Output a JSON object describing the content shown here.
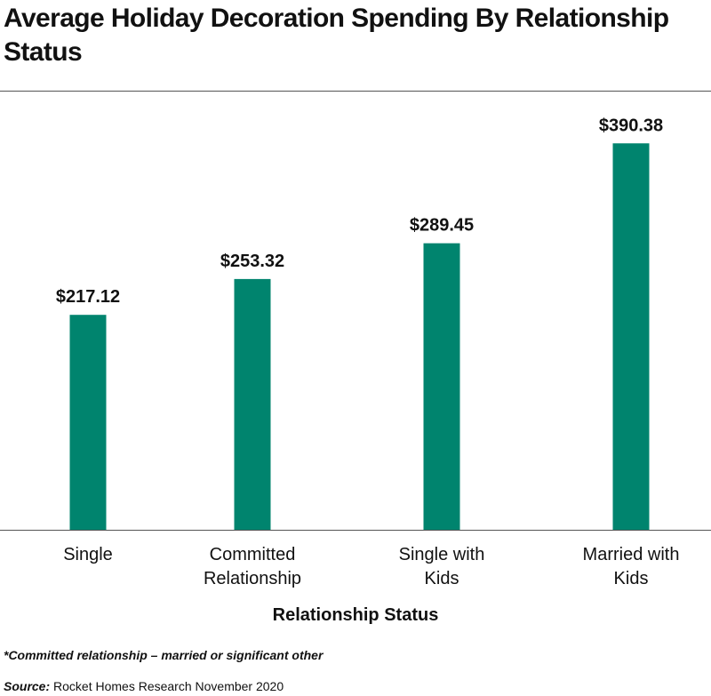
{
  "chart_data": {
    "type": "bar",
    "title": "Average Holiday Decoration Spending By Relationship Status",
    "xlabel": "Relationship Status",
    "ylabel": "",
    "categories": [
      "Single",
      "Committed Relationship",
      "Single with Kids",
      "Married with Kids"
    ],
    "values": [
      217.12,
      253.32,
      289.45,
      390.38
    ],
    "data_labels": [
      "$217.12",
      "$253.32",
      "$289.45",
      "$390.38"
    ],
    "ylim": [
      0,
      440
    ],
    "grid": false,
    "legend": "none",
    "bar_color": "#00846e"
  },
  "footnote": "*Committed relationship – married or significant other",
  "source": {
    "prefix": "Source:",
    "text": "Rocket Homes Research November 2020"
  }
}
